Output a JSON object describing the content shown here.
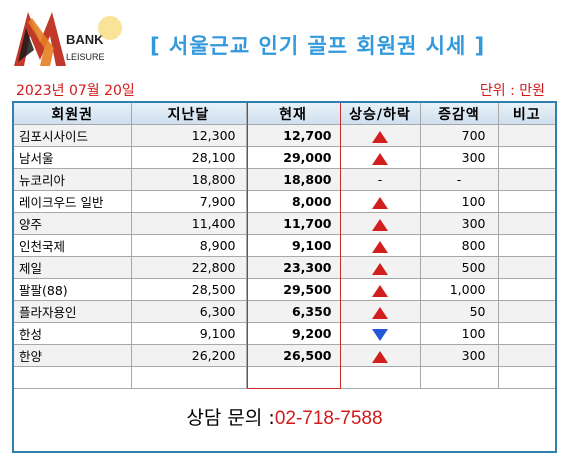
{
  "logo": {
    "word1": "BANK",
    "word2": "LEISURE"
  },
  "title": "[ 서울근교 인기 골프 회원권 시세 ]",
  "date": "2023년 07월 20일",
  "unit": "단위 : 만원",
  "columns": [
    "회원권",
    "지난달",
    "현재",
    "상승/하락",
    "증감액",
    "비고"
  ],
  "rows": [
    {
      "name": "김포시사이드",
      "prev": "12,300",
      "cur": "12,700",
      "dir": "up",
      "chg": "700",
      "note": ""
    },
    {
      "name": "남서울",
      "prev": "28,100",
      "cur": "29,000",
      "dir": "up",
      "chg": "300",
      "note": ""
    },
    {
      "name": "뉴코리아",
      "prev": "18,800",
      "cur": "18,800",
      "dir": "none",
      "chg": "-",
      "note": ""
    },
    {
      "name": "레이크우드 일반",
      "prev": "7,900",
      "cur": "8,000",
      "dir": "up",
      "chg": "100",
      "note": ""
    },
    {
      "name": "양주",
      "prev": "11,400",
      "cur": "11,700",
      "dir": "up",
      "chg": "300",
      "note": ""
    },
    {
      "name": "인천국제",
      "prev": "8,900",
      "cur": "9,100",
      "dir": "up",
      "chg": "800",
      "note": ""
    },
    {
      "name": "제일",
      "prev": "22,800",
      "cur": "23,300",
      "dir": "up",
      "chg": "500",
      "note": ""
    },
    {
      "name": "팔팔(88)",
      "prev": "28,500",
      "cur": "29,500",
      "dir": "up",
      "chg": "1,000",
      "note": ""
    },
    {
      "name": "플라자용인",
      "prev": "6,300",
      "cur": "6,350",
      "dir": "up",
      "chg": "50",
      "note": ""
    },
    {
      "name": "한성",
      "prev": "9,100",
      "cur": "9,200",
      "dir": "down",
      "chg": "100",
      "note": ""
    },
    {
      "name": "한양",
      "prev": "26,200",
      "cur": "26,500",
      "dir": "up",
      "chg": "300",
      "note": ""
    },
    {
      "name": "",
      "prev": "",
      "cur": "",
      "dir": "",
      "chg": "",
      "note": ""
    }
  ],
  "no_change_mark": "-",
  "contact": {
    "label": "상담 문의 :",
    "phone": "02-718-7588"
  },
  "colors": {
    "title": "#3399dd",
    "accent_red": "#d21a1a",
    "up": "#d11f1f",
    "down": "#2457d6",
    "frame": "#2f7fb0"
  },
  "icons": {
    "up": "triangle-up-icon",
    "down": "triangle-down-icon"
  }
}
